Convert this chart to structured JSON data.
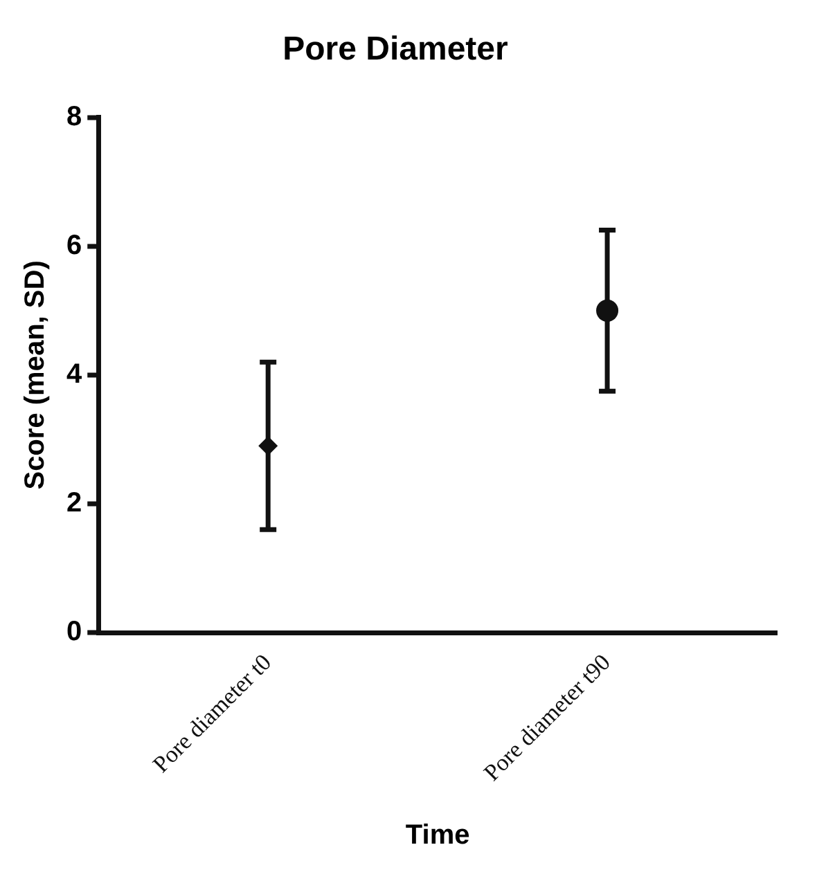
{
  "chart_data": {
    "type": "scatter",
    "title": "Pore Diameter",
    "xlabel": "Time",
    "ylabel": "Score (mean, SD)",
    "categories": [
      "Pore diameter t0",
      "Pore diameter t90"
    ],
    "series": [
      {
        "color": "#111111",
        "marker": "diamond",
        "values": [
          2.9,
          null
        ],
        "errors": [
          1.3,
          null
        ]
      },
      {
        "color": "#111111",
        "marker": "circle",
        "values": [
          null,
          5.0
        ],
        "errors": [
          null,
          1.25
        ]
      }
    ],
    "ylim": [
      0,
      8
    ],
    "yticks": [
      0,
      2,
      4,
      6,
      8
    ],
    "grid": false,
    "legend": false
  }
}
